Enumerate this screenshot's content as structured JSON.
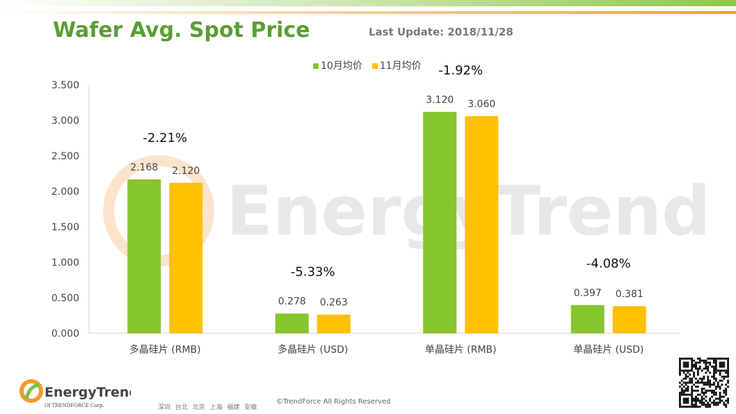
{
  "header": {
    "title": "Wafer Avg. Spot Price",
    "last_update": "Last Update: 2018/11/28"
  },
  "watermark": "EnergyTrend",
  "colors": {
    "oct": "#86c52d",
    "nov": "#ffc000",
    "title": "#5a9e32"
  },
  "chart_data": {
    "type": "bar",
    "title": "Wafer Avg. Spot Price",
    "categories": [
      "多晶硅片 (RMB)",
      "多晶硅片 (USD)",
      "单晶硅片 (RMB)",
      "单晶硅片 (USD)"
    ],
    "series": [
      {
        "name": "10月均价",
        "values": [
          2.168,
          0.278,
          3.12,
          0.397
        ],
        "labels": [
          "2.168",
          "0.278",
          "3.120",
          "0.397"
        ]
      },
      {
        "name": "11月均价",
        "values": [
          2.12,
          0.263,
          3.06,
          0.381
        ],
        "labels": [
          "2.120",
          "0.263",
          "3.060",
          "0.381"
        ]
      }
    ],
    "annotations": [
      "-2.21%",
      "-5.33%",
      "-1.92%",
      "-4.08%"
    ],
    "yticks": [
      "0.000",
      "0.500",
      "1.000",
      "1.500",
      "2.000",
      "2.500",
      "3.000",
      "3.500"
    ],
    "ylim": [
      0,
      3.5
    ],
    "grid": false,
    "legend": "top-center"
  },
  "footer": {
    "logo_name": "EnergyTrend",
    "logo_sub": "Of TRENDFORCE Corp.",
    "cities": "深圳 台北 北京 上海 福建 安徽",
    "copyright": "©TrendForce All Rights Reserved"
  }
}
